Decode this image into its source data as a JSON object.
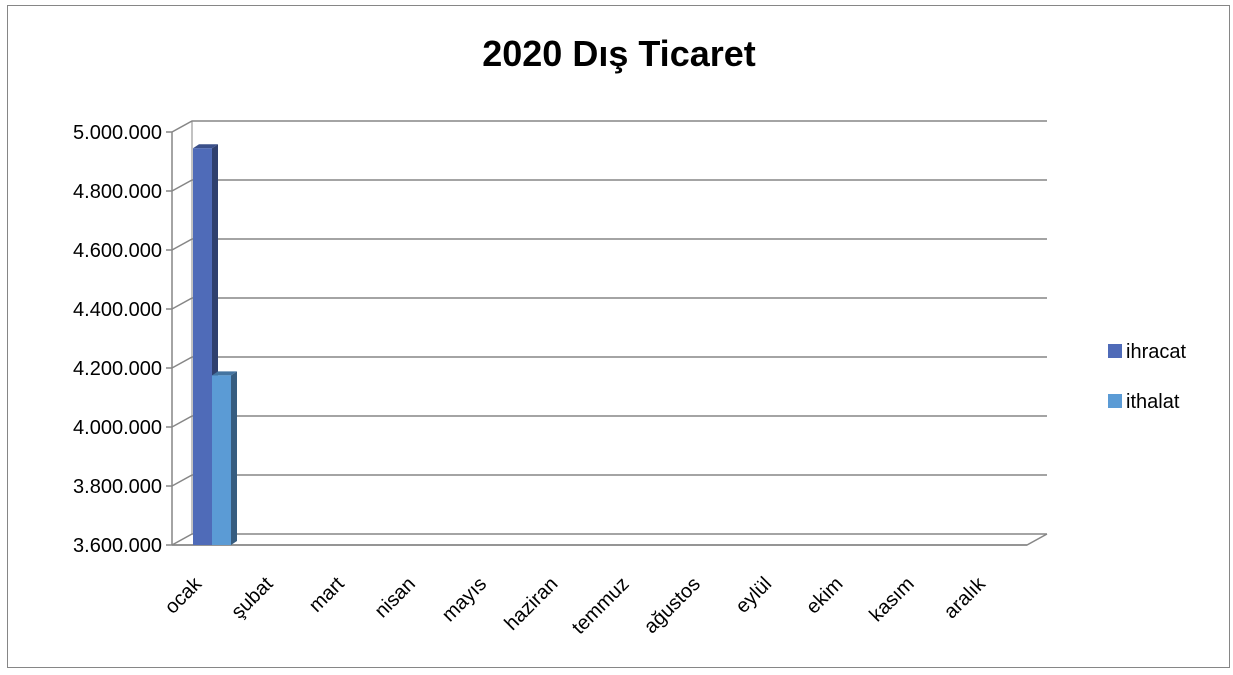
{
  "chart_data": {
    "type": "bar",
    "title": "2020 Dış Ticaret",
    "xlabel": "",
    "ylabel": "",
    "categories": [
      "ocak",
      "şubat",
      "mart",
      "nisan",
      "mayıs",
      "haziran",
      "temmuz",
      "ağustos",
      "eylül",
      "ekim",
      "kasım",
      "aralık"
    ],
    "series": [
      {
        "name": "ihracat",
        "color": "#4f6bb8",
        "values": [
          4945000,
          null,
          null,
          null,
          null,
          null,
          null,
          null,
          null,
          null,
          null,
          null
        ]
      },
      {
        "name": "ithalat",
        "color": "#5b9bd5",
        "values": [
          4175000,
          null,
          null,
          null,
          null,
          null,
          null,
          null,
          null,
          null,
          null,
          null
        ]
      }
    ],
    "ylim": [
      3600000,
      5000000
    ],
    "yticks": [
      3600000,
      3800000,
      4000000,
      4200000,
      4400000,
      4600000,
      4800000,
      5000000
    ],
    "ytick_labels": [
      "3.600.000",
      "3.800.000",
      "4.000.000",
      "4.200.000",
      "4.400.000",
      "4.600.000",
      "4.800.000",
      "5.000.000"
    ],
    "grid": true,
    "legend_position": "right",
    "style": "3d-clustered-column"
  }
}
